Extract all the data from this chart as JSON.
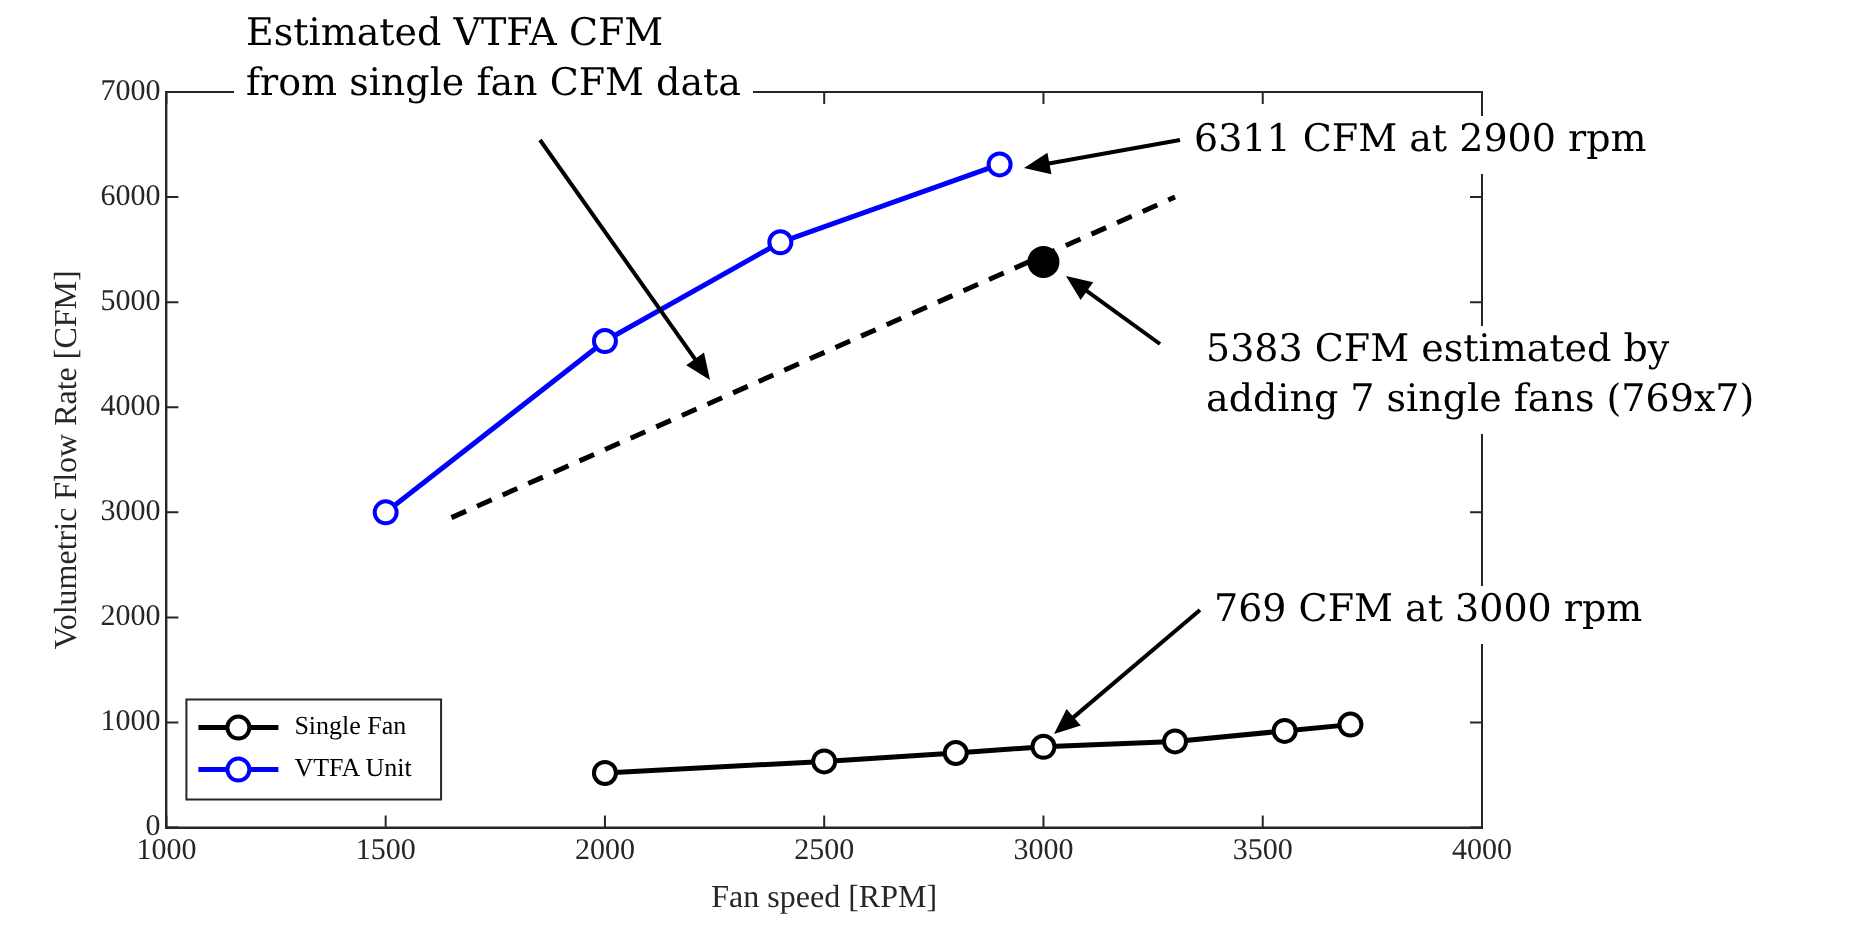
{
  "chart_data": {
    "type": "line",
    "xlabel": "Fan speed [RPM]",
    "ylabel": "Volumetric Flow Rate [CFM]",
    "xlim": [
      1000,
      4000
    ],
    "xticks": [
      1000,
      1500,
      2000,
      2500,
      3000,
      3500,
      4000
    ],
    "ylim": [
      0,
      7000
    ],
    "yticks": [
      0,
      1000,
      2000,
      3000,
      4000,
      5000,
      6000,
      7000
    ],
    "grid": false,
    "legend": "bottom left",
    "line_style": "solid",
    "series": [
      {
        "name": "Single Fan",
        "color": "#000000",
        "marker": "circle",
        "x": [
          2000,
          2500,
          2800,
          3000,
          3300,
          3550,
          3700
        ],
        "values": [
          520,
          630,
          710,
          769,
          820,
          920,
          980
        ]
      },
      {
        "name": "VTFA Unit",
        "color": "#0000ff",
        "marker": "circle",
        "x": [
          1500,
          2000,
          2400,
          2900
        ],
        "values": [
          3000,
          4630,
          5570,
          6311
        ]
      },
      {
        "color": "#000000",
        "marker": "none",
        "line_style": "dashed",
        "x": [
          1650,
          3300
        ],
        "values": [
          2950,
          6000
        ]
      },
      {
        "type": "scatter",
        "color": "#000000",
        "marker": "circle",
        "x": [
          3000
        ],
        "values": [
          5383
        ]
      }
    ],
    "annotations": [
      "Estimated VTFA CFM\nfrom single fan CFM data",
      "6311 CFM at 2900 rpm",
      "5383 CFM estimated by\nadding 7 single fans (769x7)",
      "769 CFM at 3000 rpm"
    ]
  }
}
